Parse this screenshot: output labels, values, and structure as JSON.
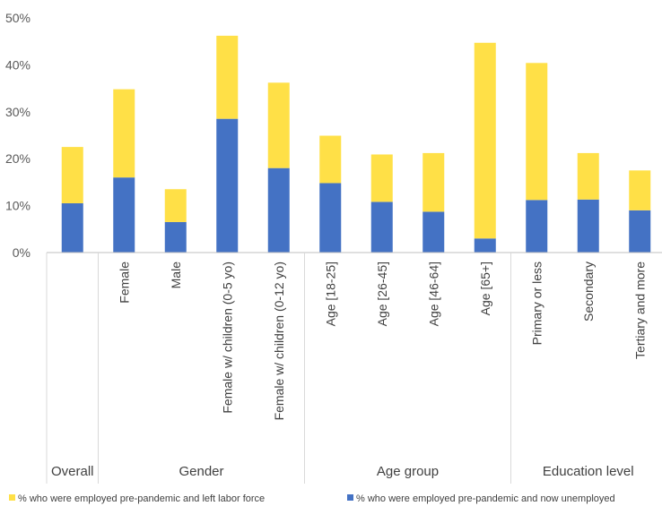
{
  "chart_data": {
    "type": "bar",
    "stacked": true,
    "categories": [
      "Overall",
      "Female",
      "Male",
      "Female w/ children (0-5 yo)",
      "Female w/ children (0-12 yo)",
      "Age [18-25]",
      "Age [26-45]",
      "Age [46-64]",
      "Age [65+]",
      "Primary or less",
      "Secondary",
      "Tertiary and more"
    ],
    "groups": [
      {
        "label": "Overall",
        "from": 0,
        "to": 0
      },
      {
        "label": "Gender",
        "from": 1,
        "to": 4
      },
      {
        "label": "Age group",
        "from": 5,
        "to": 8
      },
      {
        "label": "Education level",
        "from": 9,
        "to": 11
      }
    ],
    "series": [
      {
        "name": "% who were employed pre-pandemic and now unemployed",
        "color": "#4472C4",
        "values": [
          10.5,
          16.0,
          6.5,
          28.5,
          18.0,
          14.8,
          10.8,
          8.7,
          3.0,
          11.2,
          11.3,
          9.0
        ]
      },
      {
        "name": "% who were employed pre-pandemic and left labor force",
        "color": "#FFE047",
        "values": [
          12.0,
          18.8,
          7.0,
          17.7,
          18.2,
          10.1,
          10.1,
          12.5,
          41.7,
          29.2,
          9.9,
          8.5
        ]
      }
    ],
    "legend_order": [
      1,
      0
    ],
    "legend_position": "bottom",
    "yticks": [
      "0%",
      "10%",
      "20%",
      "30%",
      "40%",
      "50%"
    ],
    "ylim": [
      0,
      50
    ],
    "grid": false,
    "title": "",
    "xlabel": "",
    "ylabel": ""
  }
}
